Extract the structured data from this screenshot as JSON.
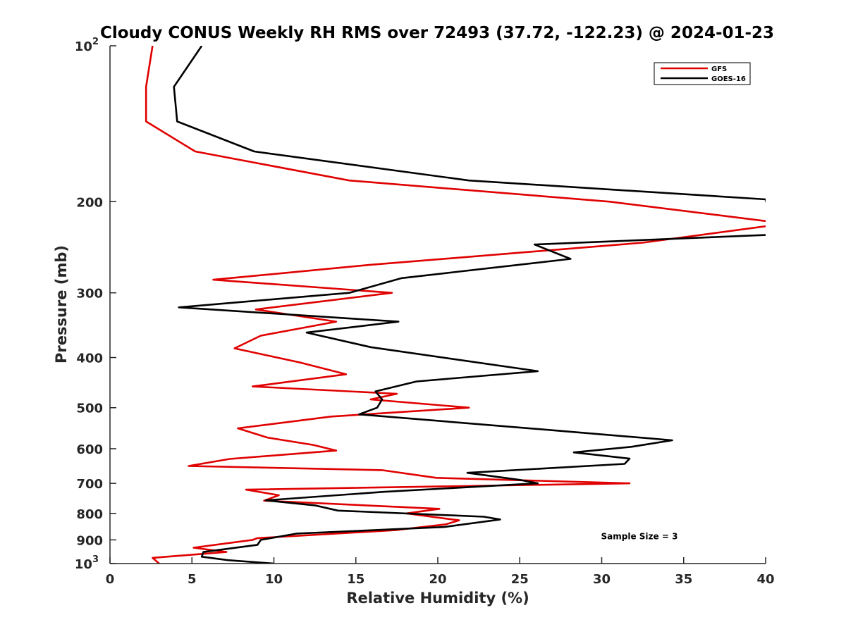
{
  "chart_data": {
    "type": "line",
    "title": "Cloudy CONUS Weekly RH RMS over 72493 (37.72, -122.23) @ 2024-01-23",
    "xlabel": "Relative Humidity (%)",
    "ylabel": "Pressure (mb)",
    "xlim": [
      0,
      40
    ],
    "ylim": [
      100,
      1000
    ],
    "yscale": "log",
    "y_reversed": true,
    "grid": false,
    "legend_position": "top-right",
    "x_ticks": [
      {
        "value": 0,
        "label": "0"
      },
      {
        "value": 5,
        "label": "5"
      },
      {
        "value": 10,
        "label": "10"
      },
      {
        "value": 15,
        "label": "15"
      },
      {
        "value": 20,
        "label": "20"
      },
      {
        "value": 25,
        "label": "25"
      },
      {
        "value": 30,
        "label": "30"
      },
      {
        "value": 35,
        "label": "35"
      },
      {
        "value": 40,
        "label": "40"
      }
    ],
    "y_ticks": [
      {
        "value": 100,
        "label": "10",
        "sup": "2"
      },
      {
        "value": 200,
        "label": "200"
      },
      {
        "value": 300,
        "label": "300"
      },
      {
        "value": 400,
        "label": "400"
      },
      {
        "value": 500,
        "label": "500"
      },
      {
        "value": 600,
        "label": "600"
      },
      {
        "value": 700,
        "label": "700"
      },
      {
        "value": 800,
        "label": "800"
      },
      {
        "value": 900,
        "label": "900"
      },
      {
        "value": 1000,
        "label": "10",
        "sup": "3"
      }
    ],
    "series": [
      {
        "name": "GFS",
        "color": "#e00000",
        "points": [
          [
            2.6,
            100
          ],
          [
            2.2,
            120
          ],
          [
            2.2,
            140
          ],
          [
            5.2,
            160
          ],
          [
            14.6,
            182
          ],
          [
            30.5,
            200
          ],
          [
            40.0,
            218
          ],
          [
            40.5,
            222
          ],
          [
            32.5,
            240
          ],
          [
            15.8,
            265
          ],
          [
            6.3,
            283
          ],
          [
            17.2,
            300
          ],
          [
            8.9,
            323
          ],
          [
            13.8,
            341
          ],
          [
            9.2,
            363
          ],
          [
            7.6,
            384
          ],
          [
            11.6,
            409
          ],
          [
            14.4,
            431
          ],
          [
            8.7,
            455
          ],
          [
            17.5,
            470
          ],
          [
            15.9,
            482
          ],
          [
            21.9,
            500
          ],
          [
            13.5,
            520
          ],
          [
            7.8,
            548
          ],
          [
            9.6,
            571
          ],
          [
            12.4,
            590
          ],
          [
            13.8,
            605
          ],
          [
            7.3,
            628
          ],
          [
            4.8,
            648
          ],
          [
            16.6,
            660
          ],
          [
            19.9,
            683
          ],
          [
            31.7,
            700
          ],
          [
            8.3,
            720
          ],
          [
            10.3,
            738
          ],
          [
            9.4,
            756
          ],
          [
            20.1,
            784
          ],
          [
            18.1,
            800
          ],
          [
            20.0,
            815
          ],
          [
            21.3,
            825
          ],
          [
            20.5,
            840
          ],
          [
            17.4,
            862
          ],
          [
            9.0,
            893
          ],
          [
            8.7,
            900
          ],
          [
            5.1,
            932
          ],
          [
            7.1,
            950
          ],
          [
            2.6,
            975
          ],
          [
            3.0,
            1000
          ]
        ]
      },
      {
        "name": "GOES-16",
        "color": "#000000",
        "points": [
          [
            5.6,
            100
          ],
          [
            3.9,
            120
          ],
          [
            4.1,
            140
          ],
          [
            8.8,
            160
          ],
          [
            21.9,
            182
          ],
          [
            40.0,
            198
          ],
          [
            40.5,
            228
          ],
          [
            40.0,
            232
          ],
          [
            25.9,
            242
          ],
          [
            28.1,
            258
          ],
          [
            17.8,
            281
          ],
          [
            14.6,
            300
          ],
          [
            4.2,
            320
          ],
          [
            17.6,
            341
          ],
          [
            12.0,
            358
          ],
          [
            15.9,
            382
          ],
          [
            26.1,
            425
          ],
          [
            18.7,
            445
          ],
          [
            16.2,
            465
          ],
          [
            16.6,
            482
          ],
          [
            16.3,
            500
          ],
          [
            15.2,
            515
          ],
          [
            26.2,
            550
          ],
          [
            34.3,
            578
          ],
          [
            31.8,
            595
          ],
          [
            28.3,
            610
          ],
          [
            31.7,
            627
          ],
          [
            31.4,
            642
          ],
          [
            21.8,
            668
          ],
          [
            25.1,
            690
          ],
          [
            26.1,
            700
          ],
          [
            16.7,
            727
          ],
          [
            9.5,
            755
          ],
          [
            12.5,
            772
          ],
          [
            13.9,
            790
          ],
          [
            22.8,
            812
          ],
          [
            23.8,
            822
          ],
          [
            20.4,
            850
          ],
          [
            11.4,
            875
          ],
          [
            9.2,
            900
          ],
          [
            9.0,
            920
          ],
          [
            5.7,
            950
          ],
          [
            5.6,
            970
          ],
          [
            7.2,
            985
          ],
          [
            10.0,
            1000
          ]
        ]
      }
    ],
    "annotations": [
      {
        "text": "Sample Size = 3",
        "x": 32.3,
        "y": 898
      }
    ]
  }
}
